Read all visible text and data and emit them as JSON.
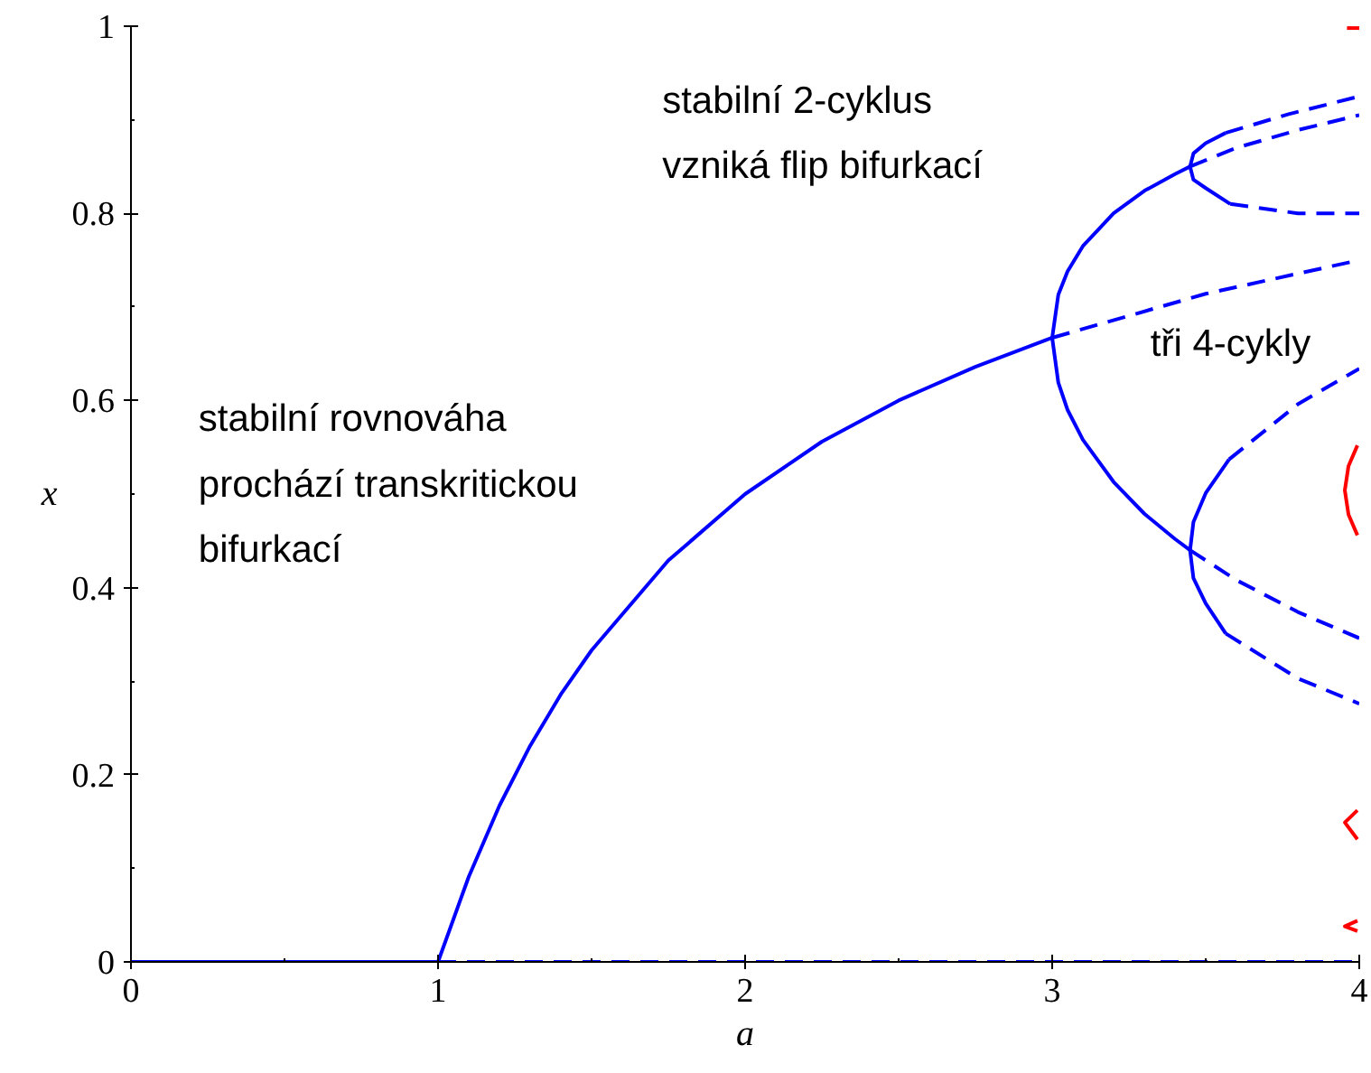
{
  "chart_data": {
    "type": "line",
    "xlabel": "a",
    "ylabel": "x",
    "xlim": [
      0,
      4
    ],
    "ylim": [
      0,
      1
    ],
    "xticks": [
      0,
      {
        "value": 0.5,
        "label": null
      },
      1,
      {
        "value": 1.5,
        "label": null
      },
      2,
      {
        "value": 2.5,
        "label": null
      },
      3,
      {
        "value": 3.5,
        "label": null
      },
      4
    ],
    "yticks": [
      0,
      {
        "value": 0.1,
        "label": null
      },
      0.2,
      {
        "value": 0.3,
        "label": null
      },
      0.4,
      {
        "value": 0.5,
        "label": null
      },
      0.6,
      {
        "value": 0.7,
        "label": null
      },
      0.8,
      {
        "value": 0.9,
        "label": null
      },
      1
    ],
    "grid": false,
    "marker": "none",
    "annotations": [
      "stabilní 2-cyklus\nvzniká flip bifurkací",
      "tři 4-cykly",
      "stabilní rovnováha\nprochází transkritickou\nbifurkací"
    ],
    "series": [
      {
        "color": "#0000ff",
        "line_style": "solid",
        "x": [
          0,
          1
        ],
        "values": [
          0,
          0
        ]
      },
      {
        "color": "#0000ff",
        "line_style": "dashed",
        "x": [
          1,
          4
        ],
        "values": [
          0,
          0
        ]
      },
      {
        "color": "#0000ff",
        "line_style": "solid",
        "x": [
          1,
          1.1,
          1.2,
          1.3,
          1.4,
          1.5,
          1.75,
          2,
          2.25,
          2.5,
          2.75,
          3
        ],
        "values": [
          0,
          0.091,
          0.167,
          0.231,
          0.286,
          0.333,
          0.429,
          0.5,
          0.556,
          0.6,
          0.636,
          0.667
        ]
      },
      {
        "color": "#0000ff",
        "line_style": "dashed",
        "x": [
          3,
          3.5,
          4
        ],
        "values": [
          0.667,
          0.714,
          0.75
        ]
      },
      {
        "color": "#0000ff",
        "line_style": "solid",
        "x": [
          3.449,
          3.4,
          3.3,
          3.2,
          3.1,
          3.05,
          3.02,
          3,
          3.02,
          3.05,
          3.1,
          3.2,
          3.3,
          3.4,
          3.449
        ],
        "values": [
          0.85,
          0.842,
          0.824,
          0.8,
          0.765,
          0.738,
          0.713,
          0.667,
          0.619,
          0.59,
          0.558,
          0.513,
          0.479,
          0.452,
          0.44
        ]
      },
      {
        "color": "#0000ff",
        "line_style": "dashed",
        "x": [
          3.449,
          3.6,
          3.8,
          4
        ],
        "values": [
          0.85,
          0.87,
          0.889,
          0.905
        ]
      },
      {
        "color": "#0000ff",
        "line_style": "dashed",
        "x": [
          3.449,
          3.6,
          3.8,
          4
        ],
        "values": [
          0.44,
          0.408,
          0.374,
          0.346
        ]
      },
      {
        "color": "#0000ff",
        "line_style": "solid",
        "x": [
          3.565,
          3.5,
          3.46,
          3.449,
          3.46,
          3.5,
          3.58
        ],
        "values": [
          0.886,
          0.875,
          0.864,
          0.85,
          0.836,
          0.827,
          0.81
        ]
      },
      {
        "color": "#0000ff",
        "line_style": "dashed",
        "x": [
          3.565,
          3.77,
          4
        ],
        "values": [
          0.886,
          0.906,
          0.925
        ]
      },
      {
        "color": "#0000ff",
        "line_style": "dashed",
        "x": [
          3.58,
          3.8,
          4
        ],
        "values": [
          0.81,
          0.8,
          0.8
        ]
      },
      {
        "color": "#0000ff",
        "line_style": "solid",
        "x": [
          3.576,
          3.5,
          3.46,
          3.449,
          3.46,
          3.5,
          3.565
        ],
        "values": [
          0.537,
          0.501,
          0.47,
          0.44,
          0.41,
          0.383,
          0.351
        ]
      },
      {
        "color": "#0000ff",
        "line_style": "dashed",
        "x": [
          3.576,
          3.8,
          4
        ],
        "values": [
          0.537,
          0.596,
          0.634
        ]
      },
      {
        "color": "#0000ff",
        "line_style": "dashed",
        "x": [
          3.565,
          3.8,
          4
        ],
        "values": [
          0.351,
          0.303,
          0.276
        ]
      },
      {
        "color": "#ff0000",
        "line_style": "solid",
        "x": [
          3.96,
          4
        ],
        "values": [
          0.998,
          0.998
        ]
      },
      {
        "color": "#ff0000",
        "line_style": "solid",
        "x": [
          3.994,
          3.965,
          3.953,
          3.965,
          3.994
        ],
        "values": [
          0.552,
          0.53,
          0.504,
          0.478,
          0.456
        ]
      },
      {
        "color": "#ff0000",
        "line_style": "solid",
        "x": [
          3.994,
          3.953,
          3.994
        ],
        "values": [
          0.162,
          0.149,
          0.131
        ]
      },
      {
        "color": "#ff0000",
        "line_style": "solid",
        "x": [
          3.994,
          3.953,
          3.994
        ],
        "values": [
          0.044,
          0.038,
          0.033
        ]
      }
    ]
  }
}
